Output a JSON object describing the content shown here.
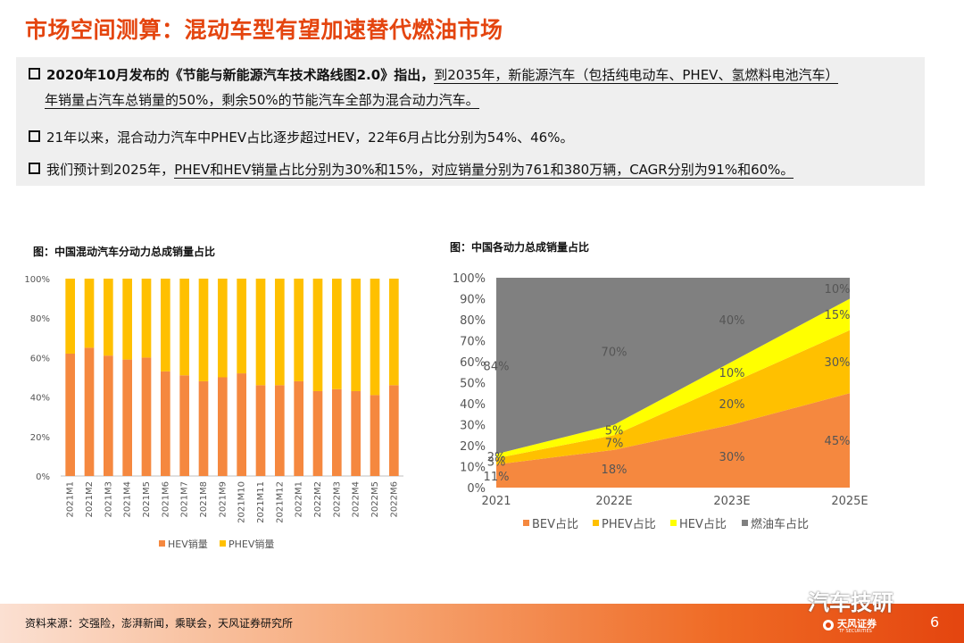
{
  "header": {
    "title": "市场空间测算：混动车型有望加速替代燃油市场"
  },
  "points": [
    {
      "line1_bold": "2020年10月发布的《节能与新能源汽车技术路线图2.0》指出，",
      "line1_ul": "到2035年，新能源汽车（包括纯电动车、PHEV、氢燃料电池汽车）",
      "line2_ul": "年销量占汽车总销量的50%，剩余50%的节能汽车全部为混合动力汽车。"
    },
    {
      "text": "21年以来，混合动力汽车中PHEV占比逐步超过HEV，22年6月占比分别为54%、46%。"
    },
    {
      "pre": "我们预计到2025年，",
      "ul": "PHEV和HEV销量占比分别为30%和15%，对应销量分别为761和380万辆，CAGR分别为91%和60%。"
    }
  ],
  "chart_data": [
    {
      "type": "bar",
      "stacked": true,
      "title": "图：中国混动汽车分动力总成销量占比",
      "categories": [
        "2021M1",
        "2021M2",
        "2021M3",
        "2021M4",
        "2021M5",
        "2021M6",
        "2021M7",
        "2021M8",
        "2021M9",
        "2021M10",
        "2021M11",
        "2021M12",
        "2022M1",
        "2022M2",
        "2022M3",
        "2022M4",
        "2022M5",
        "2022M6"
      ],
      "series": [
        {
          "name": "HEV销量",
          "color": "#f5883f",
          "values": [
            62,
            65,
            61,
            59,
            60,
            53,
            51,
            48,
            50,
            52,
            46,
            46,
            48,
            43,
            44,
            43,
            41,
            46
          ]
        },
        {
          "name": "PHEV销量",
          "color": "#ffc000",
          "values": [
            38,
            35,
            39,
            41,
            40,
            47,
            49,
            52,
            50,
            48,
            54,
            54,
            52,
            57,
            56,
            57,
            59,
            54
          ]
        }
      ],
      "yticks": [
        "0%",
        "20%",
        "40%",
        "60%",
        "80%",
        "100%"
      ],
      "ylim": [
        0,
        100
      ],
      "legend": "bottom"
    },
    {
      "type": "area",
      "stacked": true,
      "title": "图：中国各动力总成销量占比",
      "x": [
        "2021",
        "2022E",
        "2023E",
        "2025E"
      ],
      "series": [
        {
          "name": "BEV占比",
          "color": "#f5883f",
          "values": [
            11,
            18,
            30,
            45
          ],
          "labels": [
            "11%",
            "18%",
            "30%",
            "45%"
          ]
        },
        {
          "name": "PHEV占比",
          "color": "#ffc000",
          "values": [
            3,
            7,
            20,
            30
          ],
          "labels": [
            "3%",
            "7%",
            "20%",
            "30%"
          ]
        },
        {
          "name": "HEV占比",
          "color": "#ffff00",
          "values": [
            2,
            5,
            10,
            15
          ],
          "labels": [
            "2%",
            "5%",
            "10%",
            "15%"
          ]
        },
        {
          "name": "燃油车占比",
          "color": "#808080",
          "values": [
            84,
            70,
            40,
            10
          ],
          "labels": [
            "84%",
            "70%",
            "40%",
            "10%"
          ]
        }
      ],
      "yticks": [
        "0%",
        "10%",
        "20%",
        "30%",
        "40%",
        "50%",
        "60%",
        "70%",
        "80%",
        "90%",
        "100%"
      ],
      "ylim": [
        0,
        100
      ],
      "legend": "bottom"
    }
  ],
  "footer": {
    "source": "资料来源：交强险，澎湃新闻，乘联会，天风证券研究所",
    "page": "6",
    "watermark": "汽车技研",
    "brand_cn": "天风证券",
    "brand_en": "TF SECURITIES"
  }
}
